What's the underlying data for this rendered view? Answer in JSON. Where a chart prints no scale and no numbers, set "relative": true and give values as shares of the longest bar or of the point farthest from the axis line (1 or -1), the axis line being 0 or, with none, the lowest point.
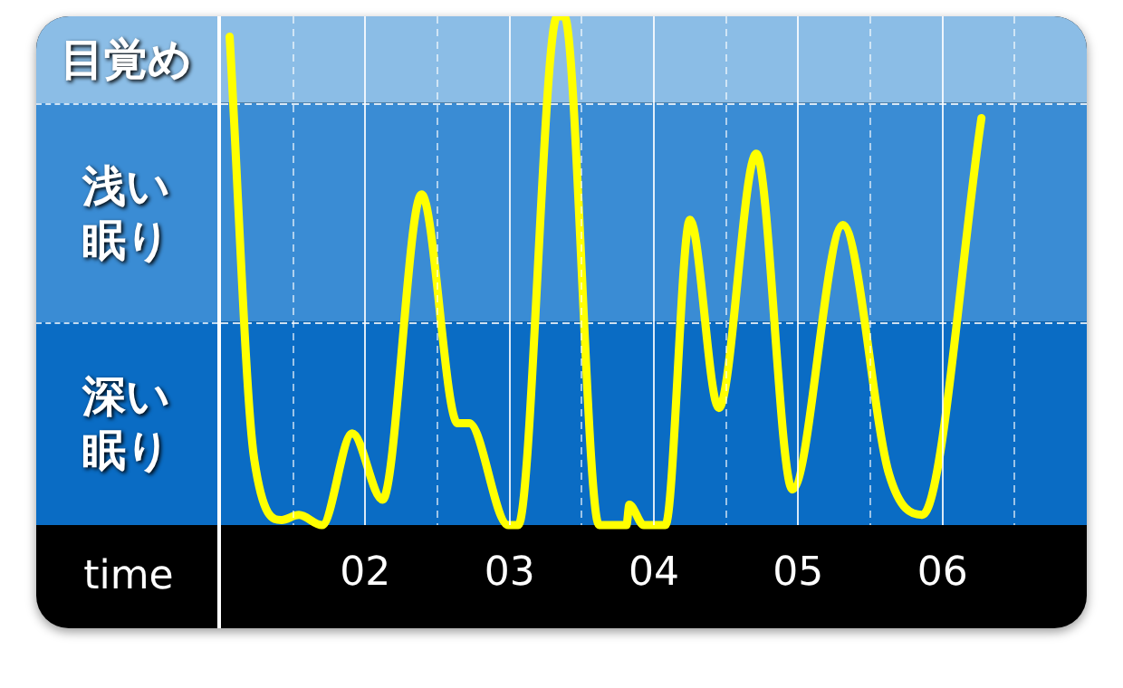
{
  "chart_data": {
    "type": "line",
    "relative": true,
    "xlabel": "time",
    "xlim": [
      1,
      7
    ],
    "xticks": [
      {
        "value": 1.5,
        "label": null
      },
      {
        "value": 2,
        "label": "02"
      },
      {
        "value": 2.5,
        "label": null
      },
      {
        "value": 3,
        "label": "03"
      },
      {
        "value": 3.5,
        "label": null
      },
      {
        "value": 4,
        "label": "04"
      },
      {
        "value": 4.5,
        "label": null
      },
      {
        "value": 5,
        "label": "05"
      },
      {
        "value": 5.5,
        "label": null
      },
      {
        "value": 6,
        "label": "06"
      },
      {
        "value": 6.5,
        "label": null
      }
    ],
    "series": [
      {
        "color": "#ffff00",
        "x": [
          1.06,
          1.23,
          1.42,
          1.54,
          1.7,
          1.91,
          2.12,
          2.39,
          2.64,
          2.72,
          2.99,
          3.06,
          3.33,
          3.38,
          3.62,
          3.81,
          3.83,
          3.93,
          4.08,
          4.25,
          4.45,
          4.71,
          4.96,
          5.31,
          5.63,
          5.86,
          6.27
        ],
        "values": [
          0.96,
          0.13,
          0.01,
          0.02,
          0,
          0.18,
          0.05,
          0.65,
          0.2,
          0.2,
          0,
          0,
          1,
          1,
          0,
          0,
          0.04,
          0,
          0,
          0.6,
          0.23,
          0.73,
          0.07,
          0.59,
          0.1,
          0.02,
          0.8
        ]
      }
    ],
    "bands": [
      {
        "axis": "y",
        "from": 0,
        "to": 0.4,
        "label": "深い眠り",
        "color": "#0a6cc4"
      },
      {
        "axis": "y",
        "from": 0.4,
        "to": 0.83,
        "label": "浅い眠り",
        "color": "#3a8cd4"
      },
      {
        "axis": "y",
        "from": 0.83,
        "to": 1,
        "label": "目覚め",
        "color": "#8bbde6"
      }
    ],
    "ref_lines": [
      {
        "axis": "y",
        "value": 0.4,
        "color": "#ffffff",
        "line_style": "dashed"
      },
      {
        "axis": "y",
        "value": 0.83,
        "color": "#ffffff",
        "line_style": "dashed"
      }
    ],
    "grid": "x",
    "legend": false,
    "marker": "none",
    "line_style": "solid"
  }
}
